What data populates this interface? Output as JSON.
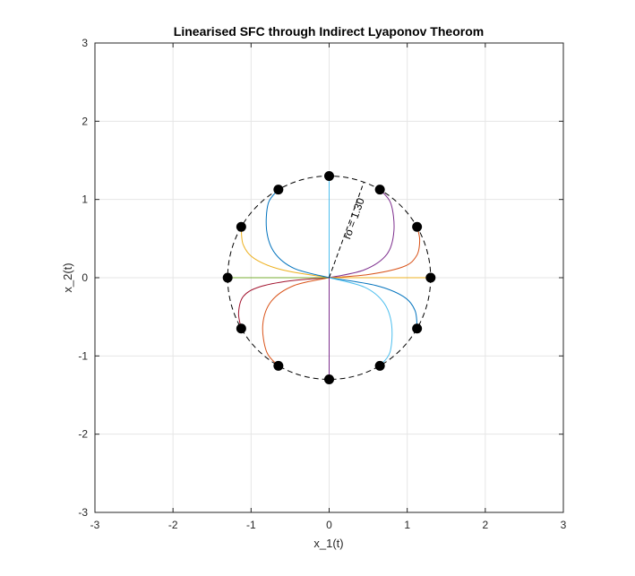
{
  "chart_data": {
    "type": "line",
    "title": "Linearised SFC through Indirect Lyaponov Theorom",
    "xlabel": "x_1(t)",
    "ylabel": "x_2(t)",
    "xlim": [
      -3,
      3
    ],
    "ylim": [
      -3,
      3
    ],
    "xticks": [
      -3,
      -2,
      -1,
      0,
      1,
      2,
      3
    ],
    "yticks": [
      -3,
      -2,
      -1,
      0,
      1,
      2,
      3
    ],
    "x_tick_labels": [
      "-3",
      "-2",
      "-1",
      "0",
      "1",
      "2",
      "3"
    ],
    "y_tick_labels": [
      "-3",
      "-2",
      "-1",
      "0",
      "1",
      "2",
      "3"
    ],
    "grid": true,
    "box": true,
    "circle": {
      "radius": 1.3,
      "style": "dashed",
      "color": "#000000"
    },
    "annotation": {
      "text": "ro = 1.30"
    },
    "initial_points": [
      [
        0,
        1.3
      ],
      [
        0.65,
        1.126
      ],
      [
        1.126,
        0.65
      ],
      [
        1.3,
        0
      ],
      [
        1.126,
        -0.65
      ],
      [
        0.65,
        -1.126
      ],
      [
        0,
        -1.3
      ],
      [
        -0.65,
        -1.126
      ],
      [
        -1.126,
        -0.65
      ],
      [
        -1.3,
        0
      ],
      [
        -1.126,
        0.65
      ],
      [
        -0.65,
        1.126
      ]
    ],
    "series": [
      {
        "color": "#4DBEEE",
        "points": [
          [
            0,
            1.3
          ],
          [
            0,
            0
          ]
        ]
      },
      {
        "color": "#7E2F8E",
        "points": [
          [
            0.65,
            1.126
          ],
          [
            0.79,
            0.95
          ],
          [
            0.83,
            0.6
          ],
          [
            0.74,
            0.3
          ],
          [
            0.45,
            0.1
          ],
          [
            0,
            0
          ]
        ]
      },
      {
        "color": "#D95319",
        "points": [
          [
            1.126,
            0.65
          ],
          [
            1.16,
            0.48
          ],
          [
            1.12,
            0.28
          ],
          [
            0.95,
            0.14
          ],
          [
            0.5,
            0.04
          ],
          [
            0,
            0
          ]
        ]
      },
      {
        "color": "#EDB120",
        "points": [
          [
            1.3,
            0
          ],
          [
            0,
            0
          ]
        ]
      },
      {
        "color": "#0072BD",
        "points": [
          [
            1.126,
            -0.65
          ],
          [
            1.1,
            -0.42
          ],
          [
            0.95,
            -0.24
          ],
          [
            0.6,
            -0.1
          ],
          [
            0,
            0
          ]
        ]
      },
      {
        "color": "#4DBEEE",
        "points": [
          [
            0.65,
            -1.126
          ],
          [
            0.78,
            -0.95
          ],
          [
            0.8,
            -0.6
          ],
          [
            0.7,
            -0.32
          ],
          [
            0.45,
            -0.12
          ],
          [
            0,
            0
          ]
        ]
      },
      {
        "color": "#7E2F8E",
        "points": [
          [
            0,
            -1.3
          ],
          [
            0,
            0
          ]
        ]
      },
      {
        "color": "#D95319",
        "points": [
          [
            -0.65,
            -1.126
          ],
          [
            -0.8,
            -0.95
          ],
          [
            -0.85,
            -0.6
          ],
          [
            -0.74,
            -0.3
          ],
          [
            -0.45,
            -0.1
          ],
          [
            0,
            0
          ]
        ]
      },
      {
        "color": "#A2142F",
        "points": [
          [
            -1.126,
            -0.65
          ],
          [
            -1.16,
            -0.45
          ],
          [
            -1.1,
            -0.24
          ],
          [
            -0.9,
            -0.12
          ],
          [
            -0.5,
            -0.04
          ],
          [
            0,
            0
          ]
        ]
      },
      {
        "color": "#77AC30",
        "points": [
          [
            -1.3,
            0
          ],
          [
            0,
            0
          ]
        ]
      },
      {
        "color": "#EDB120",
        "points": [
          [
            -1.126,
            0.65
          ],
          [
            -1.1,
            0.42
          ],
          [
            -0.95,
            0.24
          ],
          [
            -0.6,
            0.1
          ],
          [
            0,
            0
          ]
        ]
      },
      {
        "color": "#0072BD",
        "points": [
          [
            -0.65,
            1.126
          ],
          [
            -0.78,
            0.95
          ],
          [
            -0.8,
            0.6
          ],
          [
            -0.7,
            0.32
          ],
          [
            -0.45,
            0.12
          ],
          [
            0,
            0
          ]
        ]
      }
    ]
  }
}
